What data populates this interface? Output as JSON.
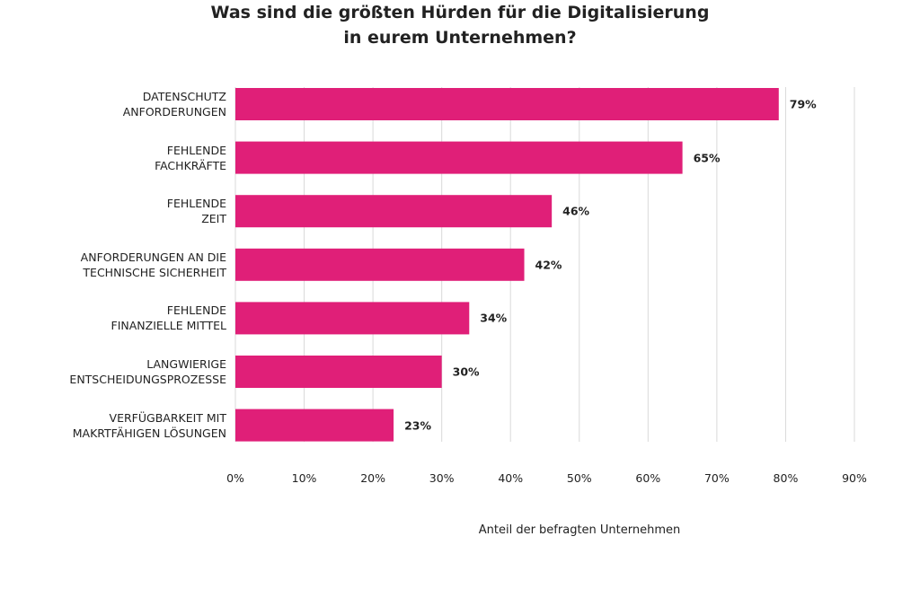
{
  "chart_data": {
    "type": "bar",
    "orientation": "horizontal",
    "title": "Was sind die größten Hürden für die Digitalisierung\nin eurem Unternehmen?",
    "xlabel": "Anteil der befragten Unternehmen",
    "categories": [
      "DATENSCHUTZ\nANFORDERUNGEN",
      "FEHLENDE\nFACHKRÄFTE",
      "FEHLENDE\nZEIT",
      "ANFORDERUNGEN AN DIE\nTECHNISCHE SICHERHEIT",
      "FEHLENDE\nFINANZIELLE MITTEL",
      "LANGWIERIGE\nENTSCHEIDUNGSPROZESSE",
      "VERFÜGBARKEIT MIT\nMAKRTFÄHIGEN LÖSUNGEN"
    ],
    "values": [
      79,
      65,
      46,
      42,
      34,
      30,
      23
    ],
    "value_labels": [
      "79%",
      "65%",
      "46%",
      "42%",
      "34%",
      "30%",
      "23%"
    ],
    "color": "#e01f78",
    "xlim": [
      0,
      90
    ],
    "xticks": [
      {
        "value": 0,
        "label": "0%"
      },
      {
        "value": 10,
        "label": "10%"
      },
      {
        "value": 20,
        "label": "20%"
      },
      {
        "value": 30,
        "label": "30%"
      },
      {
        "value": 40,
        "label": "40%"
      },
      {
        "value": 50,
        "label": "50%"
      },
      {
        "value": 60,
        "label": "60%"
      },
      {
        "value": 70,
        "label": "70%"
      },
      {
        "value": 80,
        "label": "80%"
      },
      {
        "value": 90,
        "label": "90%"
      }
    ],
    "grid": true
  }
}
